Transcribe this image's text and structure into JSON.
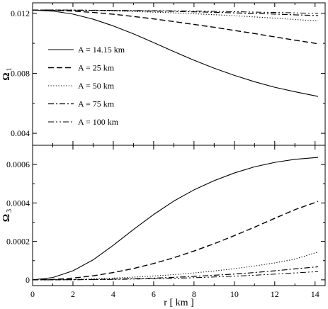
{
  "chart_data": [
    {
      "type": "line",
      "ylabel": "Ω",
      "ylabel_sub": "1",
      "xlabel": "",
      "xlim": [
        0,
        14.5
      ],
      "ylim": [
        0.0032,
        0.0127
      ],
      "x_ticks": [
        0,
        2,
        4,
        6,
        8,
        10,
        12,
        14
      ],
      "y_ticks": [
        0.004,
        0.008,
        0.012
      ],
      "y_tick_labels": [
        "0.004",
        "0.008",
        "0.012"
      ],
      "grid": false,
      "legend_position": "middle-left",
      "x": [
        0,
        1,
        2,
        3,
        4,
        5,
        6,
        7,
        8,
        9,
        10,
        11,
        12,
        13,
        14.15
      ],
      "series": [
        {
          "name": "A = 14.15 km",
          "dash": "solid",
          "values": [
            0.01222,
            0.01215,
            0.01195,
            0.01161,
            0.01116,
            0.01063,
            0.01005,
            0.00945,
            0.00887,
            0.00834,
            0.00786,
            0.00744,
            0.00707,
            0.00677,
            0.00646
          ]
        },
        {
          "name": "A = 25 km",
          "dash": "dashed",
          "values": [
            0.01222,
            0.0122,
            0.01215,
            0.01206,
            0.01194,
            0.01179,
            0.01163,
            0.01145,
            0.01126,
            0.01107,
            0.01086,
            0.01065,
            0.01043,
            0.01021,
            0.00997
          ]
        },
        {
          "name": "A = 50 km",
          "dash": "dotted",
          "values": [
            0.01222,
            0.01222,
            0.01221,
            0.01218,
            0.01216,
            0.01212,
            0.01208,
            0.01203,
            0.01197,
            0.01191,
            0.01184,
            0.01176,
            0.01168,
            0.01159,
            0.01149
          ]
        },
        {
          "name": "A = 75 km",
          "dash": "dashdot",
          "values": [
            0.01222,
            0.01222,
            0.01221,
            0.0122,
            0.01219,
            0.01217,
            0.01215,
            0.01213,
            0.0121,
            0.01207,
            0.01203,
            0.01199,
            0.01195,
            0.0119,
            0.01185
          ]
        },
        {
          "name": "A = 100 km",
          "dash": "dashdotdot",
          "values": [
            0.01222,
            0.01222,
            0.01222,
            0.01221,
            0.0122,
            0.01219,
            0.01218,
            0.01217,
            0.01215,
            0.01213,
            0.01211,
            0.01208,
            0.01206,
            0.01203,
            0.012
          ]
        }
      ]
    },
    {
      "type": "line",
      "ylabel": "Ω",
      "ylabel_sub": "3",
      "xlabel": "r [ km ]",
      "xlim": [
        0,
        14.5
      ],
      "ylim": [
        -3e-05,
        0.0007
      ],
      "x_ticks": [
        0,
        2,
        4,
        6,
        8,
        10,
        12,
        14
      ],
      "y_ticks": [
        0,
        0.0002,
        0.0004,
        0.0006
      ],
      "y_tick_labels": [
        "0",
        "0.0002",
        "0.0004",
        "0.0006"
      ],
      "grid": false,
      "x": [
        0,
        1,
        2,
        3,
        4,
        5,
        6,
        7,
        8,
        9,
        10,
        11,
        12,
        13,
        14.15
      ],
      "series": [
        {
          "name": "A = 14.15 km",
          "dash": "solid",
          "values": [
            0,
            1.2e-05,
            4.7e-05,
            0.000104,
            0.00018,
            0.000262,
            0.00034,
            0.00041,
            0.000468,
            0.000516,
            0.000556,
            0.000588,
            0.000611,
            0.000627,
            0.000637
          ]
        },
        {
          "name": "A = 25 km",
          "dash": "dashed",
          "values": [
            0,
            2e-06,
            9e-06,
            2.1e-05,
            3.8e-05,
            5.9e-05,
            8.5e-05,
            0.000115,
            0.00015,
            0.000188,
            0.00023,
            0.000274,
            0.00032,
            0.000365,
            0.000408
          ]
        },
        {
          "name": "A = 50 km",
          "dash": "dotted",
          "values": [
            0,
            5e-07,
            2e-06,
            5e-06,
            9e-06,
            1.4e-05,
            2e-05,
            2.7e-05,
            3.6e-05,
            4.6e-05,
            5.8e-05,
            7.2e-05,
            8.8e-05,
            0.000108,
            0.000145
          ]
        },
        {
          "name": "A = 75 km",
          "dash": "dashdot",
          "values": [
            0,
            2e-07,
            1e-06,
            2e-06,
            4e-06,
            6e-06,
            9e-06,
            1.3e-05,
            1.8e-05,
            2.4e-05,
            3e-05,
            3.8e-05,
            4.7e-05,
            5.7e-05,
            6.8e-05
          ]
        },
        {
          "name": "A = 100 km",
          "dash": "dashdotdot",
          "values": [
            0,
            1e-07,
            5e-07,
            1e-06,
            2e-06,
            4e-06,
            6e-06,
            8e-06,
            1.1e-05,
            1.5e-05,
            1.9e-05,
            2.4e-05,
            3e-05,
            3.6e-05,
            4.3e-05
          ]
        }
      ]
    }
  ]
}
